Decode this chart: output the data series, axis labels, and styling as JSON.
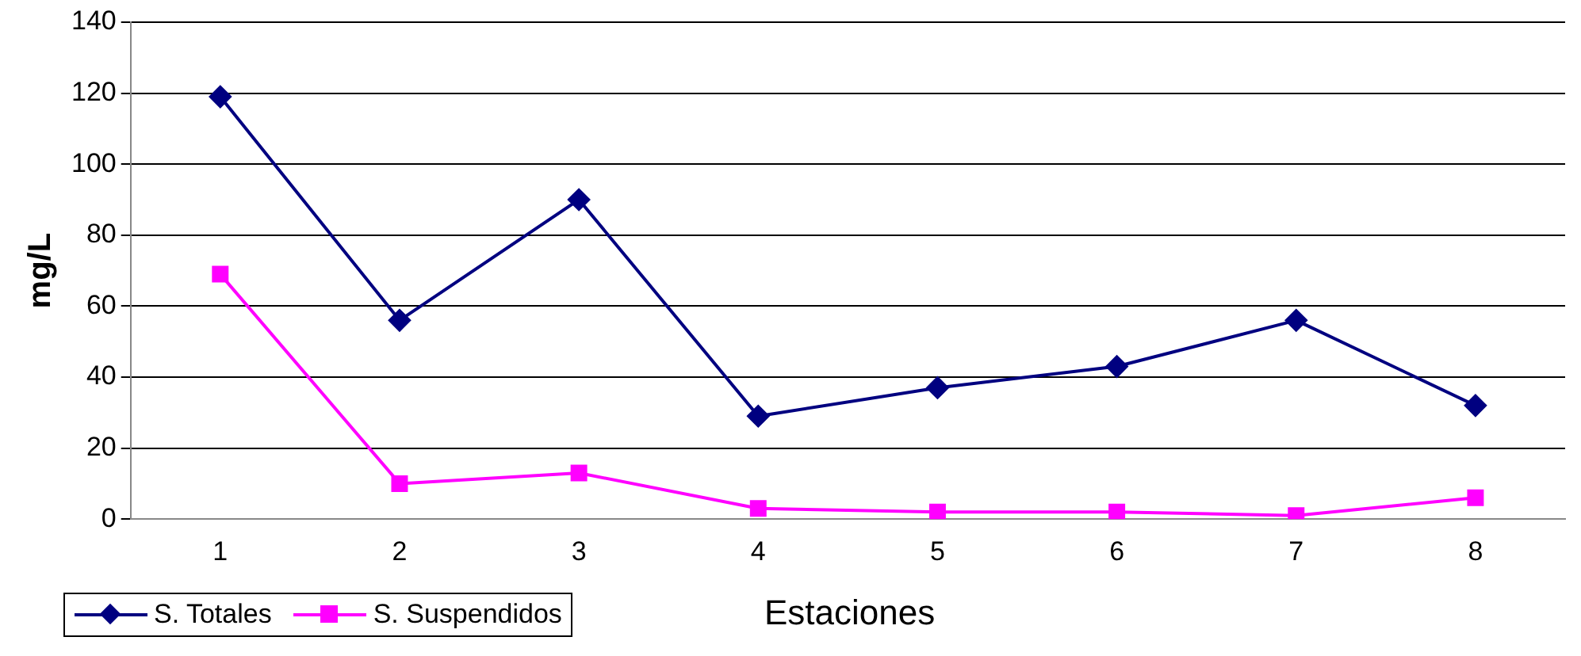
{
  "chart_data": {
    "type": "line",
    "xlabel": "Estaciones",
    "ylabel": "mg/L",
    "categories": [
      "1",
      "2",
      "3",
      "4",
      "5",
      "6",
      "7",
      "8"
    ],
    "series": [
      {
        "name": "S. Totales",
        "color": "#000080",
        "marker": "diamond",
        "values": [
          119,
          56,
          90,
          29,
          37,
          43,
          56,
          32
        ]
      },
      {
        "name": "S. Suspendidos",
        "color": "#ff00ff",
        "marker": "square",
        "values": [
          69,
          10,
          13,
          3,
          2,
          2,
          1,
          6
        ]
      }
    ],
    "ylim": [
      0,
      140
    ],
    "yticks": [
      0,
      20,
      40,
      60,
      80,
      100,
      120,
      140
    ],
    "grid": "y",
    "legend": "bottom left",
    "line_style": "solid"
  }
}
